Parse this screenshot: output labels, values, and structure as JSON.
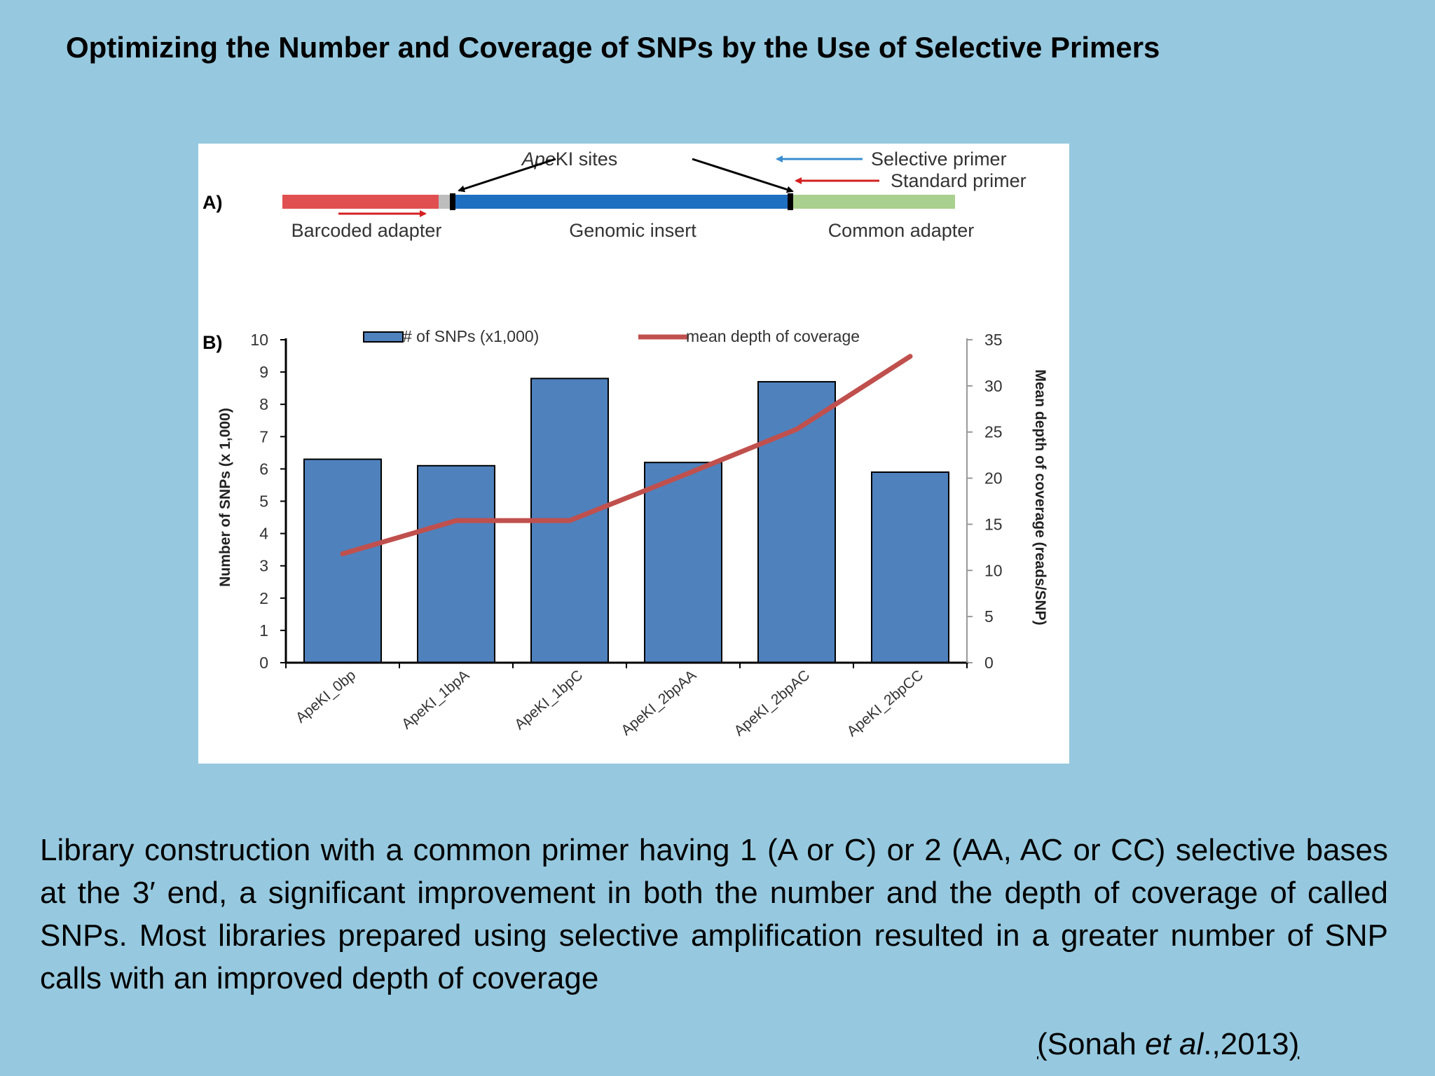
{
  "slide": {
    "title": "Optimizing the Number and Coverage of SNPs by the Use of Selective Primers",
    "body": "Library construction with a common primer having 1 (A or C) or 2 (AA, AC or CC) selective bases at the 3′ end, a significant improvement in both the number and the depth of coverage of called SNPs. Most libraries prepared using selective amplification resulted in a greater number of SNP calls with an improved depth of coverage",
    "citation": {
      "open": "(",
      "author": "Sonah ",
      "etal": "et al",
      "rest": ".,2013",
      "close": ")"
    }
  },
  "panel_a": {
    "label": "A)",
    "apeki_italic": "Ape",
    "apeki_rest": "KI sites",
    "selective_primer": "Selective primer",
    "standard_primer": "Standard primer",
    "barcoded_adapter": "Barcoded adapter",
    "genomic_insert": "Genomic insert",
    "common_adapter": "Common adapter",
    "colors": {
      "barcoded": "#e05050",
      "insert": "#1f6fc0",
      "common": "#a9d08e",
      "selective_arrow": "#3b8ed0",
      "standard_arrow": "#d42020"
    }
  },
  "chart_data": {
    "type": "bar",
    "panel_label": "B)",
    "categories": [
      "ApeKI_0bp",
      "ApeKI_1bpA",
      "ApeKI_1bpC",
      "ApeKI_2bpAA",
      "ApeKI_2bpAC",
      "ApeKI_2bpCC"
    ],
    "series": [
      {
        "name": "# of SNPs (x1,000)",
        "type": "bar",
        "axis": "left",
        "color": "#4f81bd",
        "values": [
          6.3,
          6.1,
          8.8,
          6.2,
          8.7,
          5.9
        ]
      },
      {
        "name": "mean depth of coverage",
        "type": "line",
        "axis": "right",
        "color": "#c0504d",
        "values": [
          11.8,
          15.4,
          15.4,
          20.3,
          25.3,
          33.2
        ]
      }
    ],
    "ylabel": "Number of SNPs (x 1,000)",
    "y2label": "Mean depth of coverage (reads/SNP)",
    "ylim": [
      0,
      10
    ],
    "y2lim": [
      0,
      35
    ],
    "yticks": [
      "0",
      "1",
      "2",
      "3",
      "4",
      "5",
      "6",
      "7",
      "8",
      "9",
      "10"
    ],
    "y2ticks": [
      "0",
      "5",
      "10",
      "15",
      "20",
      "25",
      "30",
      "35"
    ],
    "legend_position": "top",
    "grid": false
  }
}
